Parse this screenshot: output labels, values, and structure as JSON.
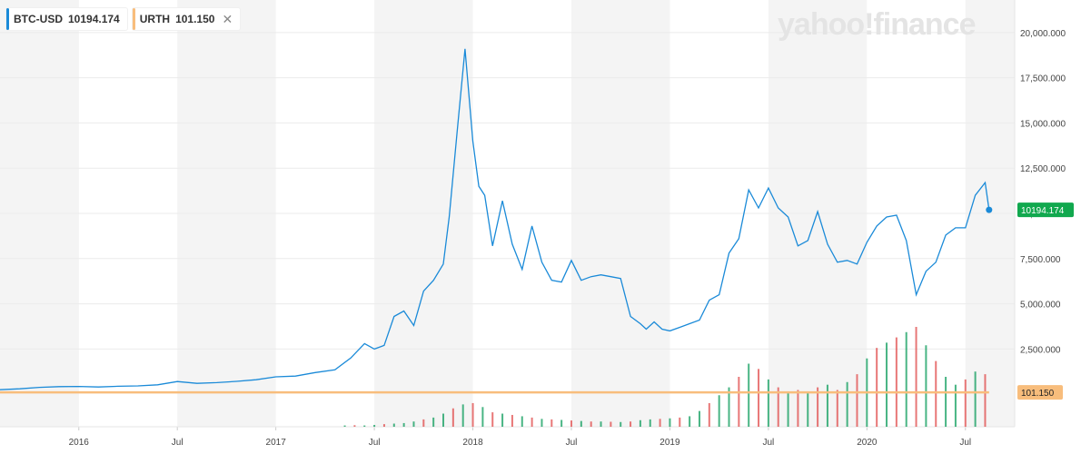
{
  "legend": {
    "btc": {
      "symbol": "BTC-USD",
      "value": "10194.174",
      "color": "#1a8ad8"
    },
    "urth": {
      "symbol": "URTH",
      "value": "101.150",
      "color": "#f8bd7c",
      "close_glyph": "✕"
    }
  },
  "brand": "yahoo!finance",
  "chart_data": {
    "type": "line",
    "x_ticks": [
      "2016",
      "Jul",
      "2017",
      "Jul",
      "2018",
      "Jul",
      "2019",
      "Jul",
      "2020",
      "Jul"
    ],
    "x_tick_dates": [
      2016.0,
      2016.5,
      2017.0,
      2017.5,
      2018.0,
      2018.5,
      2019.0,
      2019.5,
      2020.0,
      2020.5
    ],
    "y_ticks": [
      "20,000.000",
      "17,500.000",
      "15,000.000",
      "12,500.000",
      "10,000.000",
      "7,500.000",
      "5,000.000",
      "2,500.000"
    ],
    "y_tick_values": [
      20000,
      17500,
      15000,
      12500,
      10000,
      7500,
      5000,
      2500
    ],
    "xlim": [
      2015.6,
      2020.75
    ],
    "ylim": [
      -1800,
      21800
    ],
    "grid": true,
    "series": [
      {
        "name": "BTC-USD",
        "color": "#1a8ad8",
        "last_label": "10194.174",
        "label_bg": "#11a84e",
        "x": [
          2015.6,
          2015.7,
          2015.8,
          2015.9,
          2016.0,
          2016.1,
          2016.2,
          2016.3,
          2016.4,
          2016.5,
          2016.6,
          2016.7,
          2016.8,
          2016.9,
          2017.0,
          2017.1,
          2017.2,
          2017.3,
          2017.38,
          2017.45,
          2017.5,
          2017.55,
          2017.6,
          2017.65,
          2017.7,
          2017.75,
          2017.8,
          2017.85,
          2017.88,
          2017.92,
          2017.96,
          2018.0,
          2018.03,
          2018.06,
          2018.1,
          2018.15,
          2018.2,
          2018.25,
          2018.3,
          2018.35,
          2018.4,
          2018.45,
          2018.5,
          2018.55,
          2018.6,
          2018.65,
          2018.7,
          2018.75,
          2018.8,
          2018.85,
          2018.88,
          2018.92,
          2018.96,
          2019.0,
          2019.05,
          2019.1,
          2019.15,
          2019.2,
          2019.25,
          2019.3,
          2019.35,
          2019.4,
          2019.45,
          2019.5,
          2019.55,
          2019.6,
          2019.65,
          2019.7,
          2019.75,
          2019.8,
          2019.85,
          2019.9,
          2019.95,
          2020.0,
          2020.05,
          2020.1,
          2020.15,
          2020.2,
          2020.25,
          2020.3,
          2020.35,
          2020.4,
          2020.45,
          2020.5,
          2020.55,
          2020.6,
          2020.62
        ],
        "y": [
          250,
          300,
          380,
          420,
          430,
          400,
          440,
          460,
          520,
          700,
          600,
          640,
          710,
          800,
          960,
          1000,
          1200,
          1350,
          2000,
          2800,
          2500,
          2700,
          4300,
          4600,
          3800,
          5700,
          6300,
          7200,
          9800,
          14500,
          19100,
          14000,
          11500,
          11000,
          8200,
          10700,
          8300,
          6900,
          9300,
          7300,
          6300,
          6200,
          7400,
          6300,
          6500,
          6600,
          6500,
          6400,
          4300,
          3900,
          3600,
          4000,
          3600,
          3500,
          3700,
          3900,
          4100,
          5200,
          5500,
          7800,
          8600,
          11300,
          10300,
          11400,
          10300,
          9800,
          8200,
          8500,
          10100,
          8300,
          7300,
          7400,
          7200,
          8400,
          9300,
          9800,
          9900,
          8500,
          5500,
          6800,
          7300,
          8800,
          9200,
          9200,
          11000,
          11700,
          10194
        ]
      },
      {
        "name": "URTH",
        "color": "#f8bd7c",
        "last_label": "101.150",
        "label_bg": "#f8bd7c",
        "x": [
          2015.6,
          2020.62
        ],
        "y": [
          101,
          101
        ]
      }
    ],
    "volume": {
      "up_color": "#0c9c5b",
      "down_color": "#e04a4a",
      "x": [
        2017.35,
        2017.4,
        2017.45,
        2017.5,
        2017.55,
        2017.6,
        2017.65,
        2017.7,
        2017.75,
        2017.8,
        2017.85,
        2017.9,
        2017.95,
        2018.0,
        2018.05,
        2018.1,
        2018.15,
        2018.2,
        2018.25,
        2018.3,
        2018.35,
        2018.4,
        2018.45,
        2018.5,
        2018.55,
        2018.6,
        2018.65,
        2018.7,
        2018.75,
        2018.8,
        2018.85,
        2018.9,
        2018.95,
        2019.0,
        2019.05,
        2019.1,
        2019.15,
        2019.2,
        2019.25,
        2019.3,
        2019.35,
        2019.4,
        2019.45,
        2019.5,
        2019.55,
        2019.6,
        2019.65,
        2019.7,
        2019.75,
        2019.8,
        2019.85,
        2019.9,
        2019.95,
        2020.0,
        2020.05,
        2020.1,
        2020.15,
        2020.2,
        2020.25,
        2020.3,
        2020.35,
        2020.4,
        2020.45,
        2020.5,
        2020.55,
        2020.6
      ],
      "v": [
        0.05,
        0.06,
        0.05,
        0.07,
        0.1,
        0.12,
        0.14,
        0.2,
        0.28,
        0.35,
        0.5,
        0.7,
        0.85,
        0.9,
        0.75,
        0.55,
        0.5,
        0.45,
        0.4,
        0.35,
        0.3,
        0.28,
        0.26,
        0.24,
        0.22,
        0.2,
        0.2,
        0.19,
        0.18,
        0.2,
        0.25,
        0.28,
        0.3,
        0.32,
        0.35,
        0.4,
        0.6,
        0.9,
        1.2,
        1.5,
        1.9,
        2.4,
        2.2,
        1.8,
        1.5,
        1.3,
        1.4,
        1.3,
        1.5,
        1.6,
        1.4,
        1.7,
        2.0,
        2.6,
        3.0,
        3.2,
        3.4,
        3.6,
        3.8,
        3.1,
        2.5,
        1.9,
        1.6,
        1.8,
        2.1,
        2.0
      ],
      "up": [
        true,
        false,
        true,
        true,
        false,
        true,
        true,
        true,
        false,
        true,
        true,
        false,
        true,
        false,
        true,
        false,
        true,
        false,
        true,
        false,
        true,
        false,
        true,
        false,
        true,
        false,
        true,
        false,
        true,
        false,
        true,
        true,
        false,
        true,
        false,
        true,
        true,
        false,
        true,
        true,
        false,
        true,
        false,
        true,
        false,
        true,
        false,
        true,
        false,
        true,
        false,
        true,
        false,
        true,
        false,
        true,
        false,
        true,
        false,
        true,
        false,
        true,
        true,
        false,
        true,
        false
      ]
    }
  }
}
